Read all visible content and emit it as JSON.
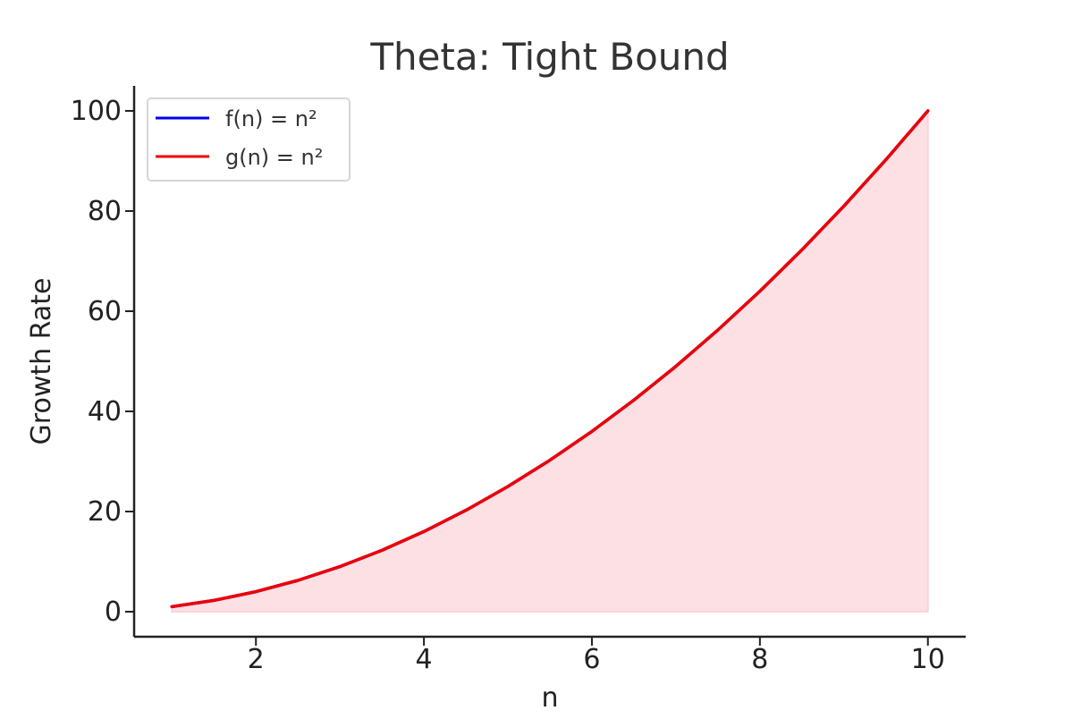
{
  "chart_data": {
    "type": "line",
    "title": "Theta: Tight Bound",
    "xlabel": "n",
    "ylabel": "Growth Rate",
    "xlim": [
      0.55,
      10.45
    ],
    "ylim": [
      -5,
      105
    ],
    "xticks": [
      2,
      4,
      6,
      8,
      10
    ],
    "yticks": [
      0,
      20,
      40,
      60,
      80,
      100
    ],
    "grid": false,
    "legend_position": "top-left",
    "x": [
      1,
      1.5,
      2,
      2.5,
      3,
      3.5,
      4,
      4.5,
      5,
      5.5,
      6,
      6.5,
      7,
      7.5,
      8,
      8.5,
      9,
      9.5,
      10
    ],
    "series": [
      {
        "name": "f(n) = n²",
        "color": "#0000ee",
        "values": [
          1,
          2.25,
          4,
          6.25,
          9,
          12.25,
          16,
          20.25,
          25,
          30.25,
          36,
          42.25,
          49,
          56.25,
          64,
          72.25,
          81,
          90.25,
          100
        ]
      },
      {
        "name": "g(n) = n²",
        "color": "#ee0000",
        "values": [
          1,
          2.25,
          4,
          6.25,
          9,
          12.25,
          16,
          20.25,
          25,
          30.25,
          36,
          42.25,
          49,
          56.25,
          64,
          72.25,
          81,
          90.25,
          100
        ]
      }
    ],
    "fill_between": {
      "lower": 0,
      "upper_series": "g(n) = n²",
      "color": "#fde0e4"
    }
  }
}
